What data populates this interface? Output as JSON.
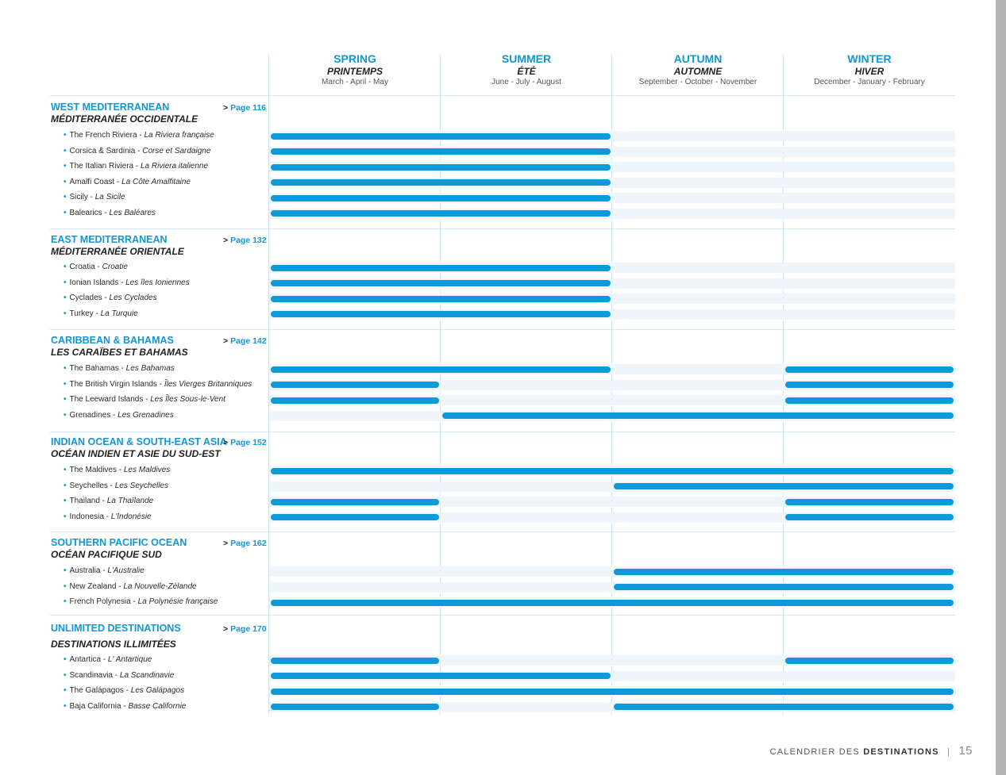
{
  "seasons": [
    {
      "en": "SPRING",
      "fr": "PRINTEMPS",
      "months": "March - April - May"
    },
    {
      "en": "SUMMER",
      "fr": "ÉTÉ",
      "months": "June - July - August"
    },
    {
      "en": "AUTUMN",
      "fr": "AUTOMNE",
      "months": "September - October - November"
    },
    {
      "en": "WINTER",
      "fr": "HIVER",
      "months": "December - January - February"
    }
  ],
  "regions": [
    {
      "en": "WEST MEDITERRANEAN",
      "fr": "MÉDITERRANÉE OCCIDENTALE",
      "page": "Page 116",
      "destinations": [
        {
          "en": "The French Riviera",
          "fr": "La Riviera française"
        },
        {
          "en": "Corsica & Sardinia",
          "fr": "Corse et Sardaigne"
        },
        {
          "en": "The Italian Riviera",
          "fr": "La Riviera italienne"
        },
        {
          "en": "Amalfi Coast",
          "fr": "La Côte Amalfitaine"
        },
        {
          "en": "Sicily",
          "fr": "La Sicile"
        },
        {
          "en": "Balearics",
          "fr": "Les Baléares"
        }
      ]
    },
    {
      "en": "EAST MEDITERRANEAN",
      "fr": "MÉDITERRANÉE ORIENTALE",
      "page": "Page 132",
      "destinations": [
        {
          "en": "Croatia",
          "fr": "Croatie"
        },
        {
          "en": "Ionian Islands",
          "fr": "Les îles Ioniennes"
        },
        {
          "en": "Cyclades",
          "fr": "Les Cyclades"
        },
        {
          "en": "Turkey",
          "fr": "La Turquie"
        }
      ]
    },
    {
      "en": "CARIBBEAN & BAHAMAS",
      "fr": "LES CARAÏBES ET BAHAMAS",
      "page": "Page 142",
      "destinations": [
        {
          "en": "The Bahamas",
          "fr": "Les Bahamas"
        },
        {
          "en": "The British Virgin Islands",
          "fr": "Îles Vierges Britanniques"
        },
        {
          "en": "The Leeward Islands",
          "fr": "Les Îles Sous-le-Vent"
        },
        {
          "en": "Grenadines",
          "fr": "Les Grenadines"
        }
      ]
    },
    {
      "en": "INDIAN OCEAN & SOUTH-EAST ASIA",
      "fr": "OCÉAN INDIEN ET ASIE DU SUD-EST",
      "page": "Page 152",
      "destinations": [
        {
          "en": "The Maldives",
          "fr": "Les Maldives"
        },
        {
          "en": "Seychelles",
          "fr": "Les Seychelles"
        },
        {
          "en": "Thailand",
          "fr": "La Thaïlande"
        },
        {
          "en": "Indonesia",
          "fr": "L'Indonésie"
        }
      ]
    },
    {
      "en": "SOUTHERN PACIFIC OCEAN",
      "fr": "OCÉAN PACIFIQUE SUD",
      "page": "Page 162",
      "destinations": [
        {
          "en": "Australia",
          "fr": "L'Australie"
        },
        {
          "en": "New Zealand",
          "fr": "La Nouvelle-Zélande"
        },
        {
          "en": "French Polynesia",
          "fr": "La Polynésie française"
        }
      ]
    },
    {
      "en": "UNLIMITED DESTINATIONS",
      "fr": "DESTINATIONS ILLIMITÉES",
      "page": "Page 170",
      "destinations": [
        {
          "en": "Antartica",
          "fr": "L' Antartique"
        },
        {
          "en": "Scandinavia",
          "fr": "La Scandinavie"
        },
        {
          "en": "The Galápagos",
          "fr": "Les Galápagos"
        },
        {
          "en": "Baja California",
          "fr": "Basse Californie"
        }
      ]
    }
  ],
  "availability": [
    [
      [
        0,
        2
      ]
    ],
    [
      [
        0,
        2
      ]
    ],
    [
      [
        0,
        2
      ]
    ],
    [
      [
        0,
        2
      ]
    ],
    [
      [
        0,
        2
      ]
    ],
    [
      [
        0,
        2
      ]
    ],
    [
      [
        0,
        2
      ]
    ],
    [
      [
        0,
        2
      ]
    ],
    [
      [
        0,
        2
      ]
    ],
    [
      [
        0,
        2
      ]
    ],
    [
      [
        0,
        2
      ],
      [
        3,
        4
      ]
    ],
    [
      [
        0,
        1
      ],
      [
        3,
        4
      ]
    ],
    [
      [
        0,
        1
      ],
      [
        3,
        4
      ]
    ],
    [
      [
        1,
        4
      ]
    ],
    [
      [
        0,
        4
      ]
    ],
    [
      [
        2,
        4
      ]
    ],
    [
      [
        0,
        1
      ],
      [
        3,
        4
      ]
    ],
    [
      [
        0,
        1
      ],
      [
        3,
        4
      ]
    ],
    [
      [
        2,
        4
      ]
    ],
    [
      [
        2,
        4
      ]
    ],
    [
      [
        0,
        4
      ]
    ],
    [
      [
        0,
        1
      ],
      [
        3,
        4
      ]
    ],
    [
      [
        0,
        2
      ]
    ],
    [
      [
        0,
        4
      ]
    ],
    [
      [
        0,
        1
      ],
      [
        2,
        4
      ]
    ]
  ],
  "colors": {
    "accent": "#0e99da",
    "track": "#eef6fb",
    "gridline": "#cfe6f3"
  },
  "footer": {
    "light": "CALENDRIER DES",
    "bold": "DESTINATIONS",
    "separator": "|",
    "page_number": "15"
  }
}
